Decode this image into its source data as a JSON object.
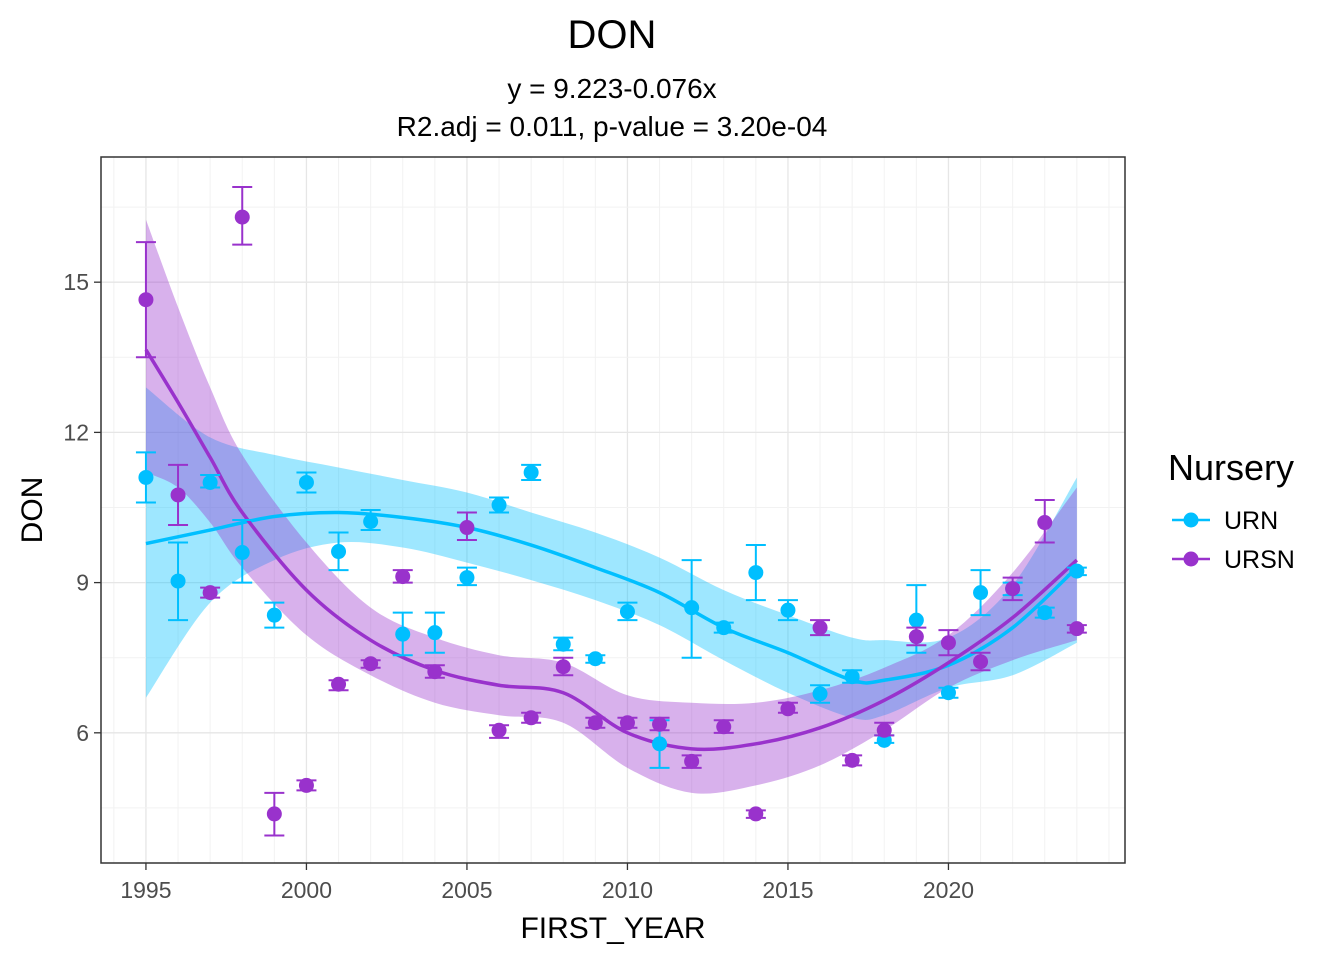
{
  "chart_data": {
    "type": "scatter",
    "title": "DON",
    "subtitle_lines": [
      "y = 9.223-0.076x",
      "R2.adj = 0.011, p-value = 3.20e-04"
    ],
    "xlabel": "FIRST_YEAR",
    "ylabel": "DON",
    "xlim": [
      1993.6,
      2025.5
    ],
    "ylim": [
      3.4,
      17.5
    ],
    "x_ticks": [
      1995,
      2000,
      2005,
      2010,
      2015,
      2020
    ],
    "y_ticks": [
      6,
      9,
      12,
      15
    ],
    "grid": true,
    "legend": {
      "title": "Nursery",
      "position": "right",
      "entries": [
        "URN",
        "URSN"
      ]
    },
    "series": [
      {
        "name": "URN",
        "color": "#00BFFF",
        "points": [
          {
            "x": 1995,
            "y": 11.1,
            "lo": 10.6,
            "hi": 11.6
          },
          {
            "x": 1996,
            "y": 9.03,
            "lo": 8.25,
            "hi": 9.8
          },
          {
            "x": 1997,
            "y": 11.0,
            "lo": 10.9,
            "hi": 11.15
          },
          {
            "x": 1998,
            "y": 9.6,
            "lo": 9.0,
            "hi": 10.25
          },
          {
            "x": 1999,
            "y": 8.35,
            "lo": 8.1,
            "hi": 8.6
          },
          {
            "x": 2000,
            "y": 11.0,
            "lo": 10.8,
            "hi": 11.2
          },
          {
            "x": 2001,
            "y": 9.62,
            "lo": 9.25,
            "hi": 10.0
          },
          {
            "x": 2002,
            "y": 10.22,
            "lo": 10.05,
            "hi": 10.45
          },
          {
            "x": 2003,
            "y": 7.97,
            "lo": 7.55,
            "hi": 8.4
          },
          {
            "x": 2004,
            "y": 8.0,
            "lo": 7.6,
            "hi": 8.4
          },
          {
            "x": 2005,
            "y": 9.1,
            "lo": 8.95,
            "hi": 9.3
          },
          {
            "x": 2006,
            "y": 10.55,
            "lo": 10.4,
            "hi": 10.7
          },
          {
            "x": 2007,
            "y": 11.2,
            "lo": 11.05,
            "hi": 11.35
          },
          {
            "x": 2008,
            "y": 7.77,
            "lo": 7.65,
            "hi": 7.9
          },
          {
            "x": 2009,
            "y": 7.48,
            "lo": 7.4,
            "hi": 7.55
          },
          {
            "x": 2010,
            "y": 8.42,
            "lo": 8.25,
            "hi": 8.6
          },
          {
            "x": 2011,
            "y": 5.78,
            "lo": 5.3,
            "hi": 6.25
          },
          {
            "x": 2012,
            "y": 8.5,
            "lo": 7.5,
            "hi": 9.45
          },
          {
            "x": 2013,
            "y": 8.1,
            "lo": 8.0,
            "hi": 8.2
          },
          {
            "x": 2014,
            "y": 9.2,
            "lo": 8.65,
            "hi": 9.75
          },
          {
            "x": 2015,
            "y": 8.45,
            "lo": 8.25,
            "hi": 8.65
          },
          {
            "x": 2016,
            "y": 6.78,
            "lo": 6.6,
            "hi": 6.95
          },
          {
            "x": 2017,
            "y": 7.12,
            "lo": 7.0,
            "hi": 7.25
          },
          {
            "x": 2018,
            "y": 5.85,
            "lo": 5.8,
            "hi": 5.95
          },
          {
            "x": 2019,
            "y": 8.25,
            "lo": 7.6,
            "hi": 8.95
          },
          {
            "x": 2020,
            "y": 6.8,
            "lo": 6.7,
            "hi": 6.9
          },
          {
            "x": 2021,
            "y": 8.8,
            "lo": 8.35,
            "hi": 9.25
          },
          {
            "x": 2022,
            "y": 8.88,
            "lo": 8.75,
            "hi": 9.0
          },
          {
            "x": 2023,
            "y": 8.4,
            "lo": 8.3,
            "hi": 8.5
          },
          {
            "x": 2024,
            "y": 9.23,
            "lo": 9.15,
            "hi": 9.3
          }
        ],
        "smooth": [
          {
            "x": 1995,
            "y": 9.78,
            "lo": 6.7,
            "hi": 12.9
          },
          {
            "x": 1997,
            "y": 10.05,
            "lo": 8.6,
            "hi": 11.9
          },
          {
            "x": 1999,
            "y": 10.32,
            "lo": 9.45,
            "hi": 11.55
          },
          {
            "x": 2001,
            "y": 10.4,
            "lo": 9.8,
            "hi": 11.3
          },
          {
            "x": 2003,
            "y": 10.3,
            "lo": 9.7,
            "hi": 11.05
          },
          {
            "x": 2005,
            "y": 10.1,
            "lo": 9.4,
            "hi": 10.8
          },
          {
            "x": 2007,
            "y": 9.75,
            "lo": 9.05,
            "hi": 10.4
          },
          {
            "x": 2009,
            "y": 9.3,
            "lo": 8.65,
            "hi": 10.0
          },
          {
            "x": 2011,
            "y": 8.8,
            "lo": 8.15,
            "hi": 9.5
          },
          {
            "x": 2013,
            "y": 8.1,
            "lo": 7.45,
            "hi": 8.85
          },
          {
            "x": 2015,
            "y": 7.6,
            "lo": 6.8,
            "hi": 8.35
          },
          {
            "x": 2017,
            "y": 7.05,
            "lo": 6.3,
            "hi": 7.9
          },
          {
            "x": 2018,
            "y": 7.05,
            "lo": 6.35,
            "hi": 7.85
          },
          {
            "x": 2020,
            "y": 7.35,
            "lo": 6.9,
            "hi": 7.9
          },
          {
            "x": 2022,
            "y": 8.1,
            "lo": 7.15,
            "hi": 8.95
          },
          {
            "x": 2024,
            "y": 9.3,
            "lo": 7.8,
            "hi": 11.1
          }
        ]
      },
      {
        "name": "URSN",
        "color": "#9932CC",
        "points": [
          {
            "x": 1995,
            "y": 14.65,
            "lo": 13.5,
            "hi": 15.8
          },
          {
            "x": 1996,
            "y": 10.75,
            "lo": 10.15,
            "hi": 11.35
          },
          {
            "x": 1997,
            "y": 8.8,
            "lo": 8.7,
            "hi": 8.9
          },
          {
            "x": 1998,
            "y": 16.3,
            "lo": 15.75,
            "hi": 16.9
          },
          {
            "x": 1999,
            "y": 4.38,
            "lo": 3.95,
            "hi": 4.8
          },
          {
            "x": 2000,
            "y": 4.95,
            "lo": 4.85,
            "hi": 5.05
          },
          {
            "x": 2001,
            "y": 6.97,
            "lo": 6.85,
            "hi": 7.05
          },
          {
            "x": 2002,
            "y": 7.38,
            "lo": 7.3,
            "hi": 7.45
          },
          {
            "x": 2003,
            "y": 9.12,
            "lo": 9.0,
            "hi": 9.25
          },
          {
            "x": 2004,
            "y": 7.22,
            "lo": 7.1,
            "hi": 7.35
          },
          {
            "x": 2005,
            "y": 10.1,
            "lo": 9.85,
            "hi": 10.4
          },
          {
            "x": 2006,
            "y": 6.05,
            "lo": 5.9,
            "hi": 6.15
          },
          {
            "x": 2007,
            "y": 6.3,
            "lo": 6.2,
            "hi": 6.4
          },
          {
            "x": 2008,
            "y": 7.32,
            "lo": 7.15,
            "hi": 7.5
          },
          {
            "x": 2009,
            "y": 6.2,
            "lo": 6.1,
            "hi": 6.3
          },
          {
            "x": 2010,
            "y": 6.2,
            "lo": 6.1,
            "hi": 6.3
          },
          {
            "x": 2011,
            "y": 6.17,
            "lo": 6.05,
            "hi": 6.3
          },
          {
            "x": 2012,
            "y": 5.43,
            "lo": 5.3,
            "hi": 5.55
          },
          {
            "x": 2013,
            "y": 6.12,
            "lo": 6.0,
            "hi": 6.25
          },
          {
            "x": 2014,
            "y": 4.38,
            "lo": 4.3,
            "hi": 4.45
          },
          {
            "x": 2015,
            "y": 6.48,
            "lo": 6.4,
            "hi": 6.6
          },
          {
            "x": 2016,
            "y": 8.1,
            "lo": 7.95,
            "hi": 8.25
          },
          {
            "x": 2017,
            "y": 5.45,
            "lo": 5.35,
            "hi": 5.55
          },
          {
            "x": 2018,
            "y": 6.05,
            "lo": 5.95,
            "hi": 6.2
          },
          {
            "x": 2019,
            "y": 7.92,
            "lo": 7.75,
            "hi": 8.1
          },
          {
            "x": 2020,
            "y": 7.8,
            "lo": 7.55,
            "hi": 8.05
          },
          {
            "x": 2021,
            "y": 7.42,
            "lo": 7.25,
            "hi": 7.6
          },
          {
            "x": 2022,
            "y": 8.88,
            "lo": 8.65,
            "hi": 9.1
          },
          {
            "x": 2023,
            "y": 10.2,
            "lo": 9.8,
            "hi": 10.65
          },
          {
            "x": 2024,
            "y": 8.08,
            "lo": 8.0,
            "hi": 8.15
          }
        ],
        "smooth": [
          {
            "x": 1995,
            "y": 13.65,
            "lo": 11.2,
            "hi": 16.25
          },
          {
            "x": 1996,
            "y": 12.6,
            "lo": 10.9,
            "hi": 14.5
          },
          {
            "x": 1997,
            "y": 11.5,
            "lo": 10.2,
            "hi": 12.9
          },
          {
            "x": 1998,
            "y": 10.4,
            "lo": 9.3,
            "hi": 11.55
          },
          {
            "x": 2000,
            "y": 8.85,
            "lo": 7.95,
            "hi": 9.8
          },
          {
            "x": 2002,
            "y": 7.85,
            "lo": 7.15,
            "hi": 8.5
          },
          {
            "x": 2004,
            "y": 7.25,
            "lo": 6.6,
            "hi": 7.9
          },
          {
            "x": 2006,
            "y": 6.95,
            "lo": 6.35,
            "hi": 7.55
          },
          {
            "x": 2008,
            "y": 6.8,
            "lo": 6.2,
            "hi": 7.4
          },
          {
            "x": 2010,
            "y": 6.0,
            "lo": 5.3,
            "hi": 6.75
          },
          {
            "x": 2012,
            "y": 5.68,
            "lo": 4.8,
            "hi": 6.6
          },
          {
            "x": 2014,
            "y": 5.78,
            "lo": 4.95,
            "hi": 6.6
          },
          {
            "x": 2016,
            "y": 6.1,
            "lo": 5.35,
            "hi": 6.85
          },
          {
            "x": 2018,
            "y": 6.65,
            "lo": 6.05,
            "hi": 7.3
          },
          {
            "x": 2020,
            "y": 7.4,
            "lo": 6.9,
            "hi": 7.95
          },
          {
            "x": 2022,
            "y": 8.3,
            "lo": 7.45,
            "hi": 9.2
          },
          {
            "x": 2024,
            "y": 9.45,
            "lo": 7.85,
            "hi": 10.9
          }
        ]
      }
    ]
  }
}
